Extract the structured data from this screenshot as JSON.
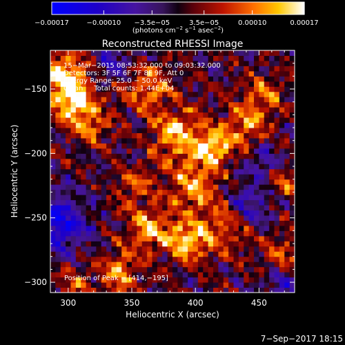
{
  "chart_data": {
    "type": "heatmap",
    "title": "Reconstructed RHESSI Image",
    "xlabel": "Heliocentric X (arcsec)",
    "ylabel": "Heliocentric Y (arcsec)",
    "xlim": [
      286,
      478
    ],
    "ylim": [
      -308,
      -120
    ],
    "x_ticks": [
      300,
      350,
      400,
      450
    ],
    "y_ticks": [
      -150,
      -200,
      -250,
      -300
    ],
    "x_tick_labels": [
      "300",
      "350",
      "400",
      "450"
    ],
    "y_tick_labels": [
      "−150",
      "−200",
      "−250",
      "−300"
    ],
    "grid": false,
    "colorbar": {
      "min": -0.00017,
      "max": 0.00017,
      "tick_labels": [
        "−0.00017",
        "−0.00010",
        "−3.5e−05",
        "3.5e−05",
        "0.00010",
        "0.00017"
      ],
      "tick_values": [
        -0.00017,
        -0.0001,
        -3.5e-05,
        3.5e-05,
        0.0001,
        0.00017
      ],
      "units_prefix": "(photons cm",
      "units_exp1": "−2",
      "units_mid": " s",
      "units_exp2": "−1",
      "units_mid2": " asec",
      "units_exp3": "−2",
      "units_suffix": ")"
    },
    "annotations": [
      "15−Mar−2015 08:53:32.000 to 09:03:32.000",
      "Detectors: 3F 5F 6F 7F 8F 9F, Att 0",
      "Energy Range: 25.0 − 50.0 keV",
      "Clean     Total counts: 1.44E+04"
    ],
    "peak_label": "Position of Peak = [414,−195]",
    "peak": [
      414,
      -195
    ],
    "sources": [
      {
        "x": 296,
        "y": -140,
        "sigma": 14,
        "amp": 1.0
      },
      {
        "x": 306,
        "y": -162,
        "sigma": 12,
        "amp": 0.85
      },
      {
        "x": 318,
        "y": -180,
        "sigma": 10,
        "amp": 0.6
      },
      {
        "x": 362,
        "y": -150,
        "sigma": 12,
        "amp": 0.75
      },
      {
        "x": 385,
        "y": -185,
        "sigma": 14,
        "amp": 0.9
      },
      {
        "x": 414,
        "y": -195,
        "sigma": 10,
        "amp": 1.0
      },
      {
        "x": 438,
        "y": -180,
        "sigma": 12,
        "amp": 0.7
      },
      {
        "x": 452,
        "y": -155,
        "sigma": 12,
        "amp": 0.55
      },
      {
        "x": 398,
        "y": -225,
        "sigma": 14,
        "amp": 0.8
      },
      {
        "x": 425,
        "y": -255,
        "sigma": 14,
        "amp": 0.7
      },
      {
        "x": 393,
        "y": -268,
        "sigma": 12,
        "amp": 1.0
      },
      {
        "x": 362,
        "y": -258,
        "sigma": 12,
        "amp": 0.8
      },
      {
        "x": 352,
        "y": -225,
        "sigma": 11,
        "amp": 0.5
      },
      {
        "x": 340,
        "y": -292,
        "sigma": 11,
        "amp": 0.75
      },
      {
        "x": 305,
        "y": -300,
        "sigma": 10,
        "amp": 0.5
      },
      {
        "x": 470,
        "y": -280,
        "sigma": 12,
        "amp": 0.55
      },
      {
        "x": 470,
        "y": -222,
        "sigma": 10,
        "amp": 0.45
      }
    ],
    "negative_regions": [
      {
        "x": 292,
        "y": -255,
        "sigma": 16,
        "amp": -0.9
      },
      {
        "x": 440,
        "y": -242,
        "sigma": 12,
        "amp": -0.7
      },
      {
        "x": 470,
        "y": -300,
        "sigma": 10,
        "amp": -0.6
      },
      {
        "x": 332,
        "y": -130,
        "sigma": 10,
        "amp": -0.5
      },
      {
        "x": 452,
        "y": -205,
        "sigma": 10,
        "amp": -0.5
      }
    ]
  },
  "footer_date": "7−Sep−2017 18:15"
}
